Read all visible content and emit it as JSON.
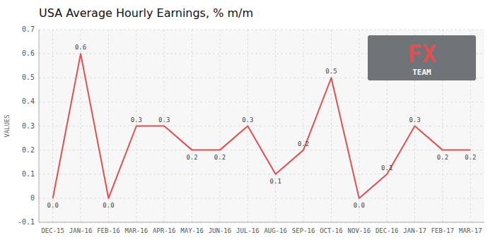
{
  "chart_data": {
    "type": "line",
    "title": "USA Average Hourly Earnings, % m/m",
    "ylabel": "VALUES",
    "categories": [
      "DEC-15",
      "JAN-16",
      "FEB-16",
      "MAR-16",
      "APR-16",
      "MAY-16",
      "JUN-16",
      "JUL-16",
      "AUG-16",
      "SEP-16",
      "OCT-16",
      "NOV-16",
      "DEC-16",
      "JAN-17",
      "FEB-17",
      "MAR-17"
    ],
    "values": [
      0.0,
      0.6,
      0.0,
      0.3,
      0.3,
      0.2,
      0.2,
      0.3,
      0.1,
      0.2,
      0.5,
      0.0,
      0.1,
      0.3,
      0.2,
      0.2
    ],
    "value_labels": [
      "0.0",
      "0.6",
      "0.0",
      "0.3",
      "0.3",
      "0.2",
      "0.2",
      "0.3",
      "0.1",
      "0.2",
      "0.5",
      "0.0",
      "0.1",
      "0.3",
      "0.2",
      "0.2"
    ],
    "color": "#e05050",
    "ylim": [
      -0.1,
      0.7
    ],
    "yticks": [
      -0.1,
      0,
      0.1,
      0.2,
      0.3,
      0.4,
      0.5,
      0.6,
      0.7
    ],
    "grid": true,
    "data_labels": true,
    "annotations": [
      "FX",
      "TEAM"
    ]
  }
}
